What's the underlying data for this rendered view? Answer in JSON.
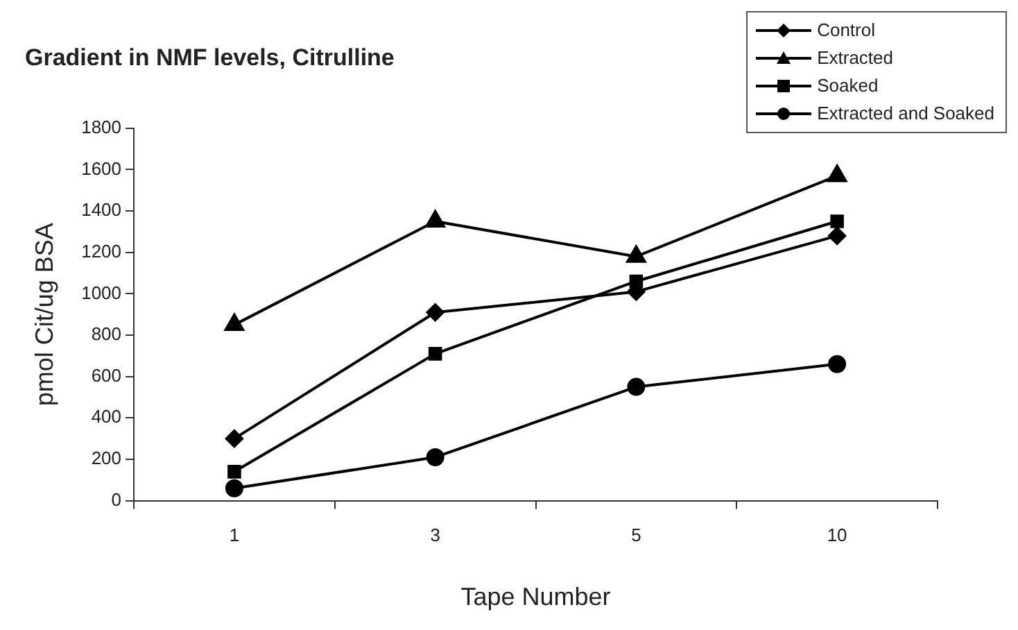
{
  "chart_data": {
    "type": "line",
    "title": "Gradient in NMF levels, Citrulline",
    "xlabel": "Tape Number",
    "ylabel": "pmol Cit/ug BSA",
    "categories": [
      "1",
      "3",
      "5",
      "10"
    ],
    "series": [
      {
        "name": "Control",
        "color": "#000000",
        "marker": "diamond",
        "values": [
          300,
          910,
          1010,
          1280
        ]
      },
      {
        "name": "Extracted",
        "color": "#000000",
        "marker": "triangle",
        "values": [
          850,
          1350,
          1180,
          1570
        ]
      },
      {
        "name": "Soaked",
        "color": "#000000",
        "marker": "square",
        "values": [
          140,
          710,
          1060,
          1350
        ]
      },
      {
        "name": "Extracted and Soaked",
        "color": "#000000",
        "marker": "circle",
        "values": [
          60,
          210,
          550,
          660
        ]
      }
    ],
    "ylim": [
      0,
      1800
    ],
    "yticks": [
      0,
      200,
      400,
      600,
      800,
      1000,
      1200,
      1400,
      1600,
      1800
    ],
    "grid": false,
    "legend": "top right",
    "line_style": "solid"
  }
}
